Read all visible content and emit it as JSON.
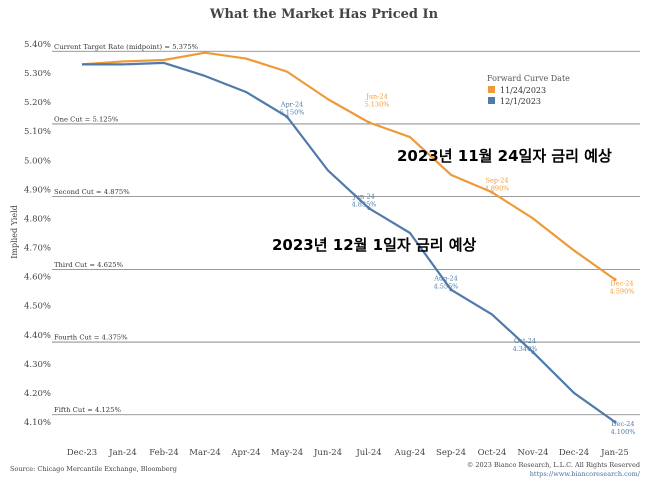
{
  "chart_data": {
    "type": "line",
    "title": "What the Market Has Priced In",
    "ylabel": "Implied Yield",
    "ylim": [
      4.05,
      5.42
    ],
    "yticks": [
      "5.40%",
      "5.30%",
      "5.20%",
      "5.10%",
      "5.00%",
      "4.90%",
      "4.80%",
      "4.70%",
      "4.60%",
      "4.50%",
      "4.40%",
      "4.30%",
      "4.20%",
      "4.10%"
    ],
    "ytick_values": [
      5.4,
      5.3,
      5.2,
      5.1,
      5.0,
      4.9,
      4.8,
      4.7,
      4.6,
      4.5,
      4.4,
      4.3,
      4.2,
      4.1
    ],
    "categories": [
      "Dec-23",
      "Jan-24",
      "Feb-24",
      "Mar-24",
      "Apr-24",
      "May-24",
      "Jun-24",
      "Jul-24",
      "Aug-24",
      "Sep-24",
      "Oct-24",
      "Nov-24",
      "Dec-24",
      "Jan-25"
    ],
    "legend_title": "Forward Curve Date",
    "legend_position": "top-right",
    "grid": false,
    "series": [
      {
        "name": "11/24/2023",
        "color": "#ef9a3a",
        "values": [
          5.33,
          5.34,
          5.345,
          5.37,
          5.35,
          5.305,
          5.21,
          5.13,
          5.08,
          4.95,
          4.89,
          4.8,
          4.69,
          4.59
        ]
      },
      {
        "name": "12/1/2023",
        "color": "#4f7baa",
        "values": [
          5.33,
          5.33,
          5.335,
          5.29,
          5.235,
          5.15,
          4.965,
          4.835,
          4.75,
          4.555,
          4.47,
          4.34,
          4.2,
          4.1
        ]
      }
    ],
    "reference_lines": [
      {
        "label": "Current Target Rate (midpoint) = 5.375%",
        "value": 5.375
      },
      {
        "label": "One Cut = 5.125%",
        "value": 5.125
      },
      {
        "label": "Second Cut = 4.875%",
        "value": 4.875
      },
      {
        "label": "Third Cut = 4.625%",
        "value": 4.625
      },
      {
        "label": "Fourth Cut = 4.375%",
        "value": 4.375
      },
      {
        "label": "Fifth Cut = 4.125%",
        "value": 4.125
      }
    ],
    "data_labels": [
      {
        "series": 0,
        "index": 7,
        "month": "Jun-24",
        "value_text": "5.130%"
      },
      {
        "series": 0,
        "index": 10,
        "month": "Sep-24",
        "value_text": "4.890%"
      },
      {
        "series": 0,
        "index": 13,
        "month": "Dec-24",
        "value_text": "4.590%"
      },
      {
        "series": 1,
        "index": 5,
        "month": "Apr-24",
        "value_text": "5.150%"
      },
      {
        "series": 1,
        "index": 7,
        "month": "Jun-24",
        "value_text": "4.835%"
      },
      {
        "series": 1,
        "index": 9,
        "month": "Aug-24",
        "value_text": "4.555%"
      },
      {
        "series": 1,
        "index": 11,
        "month": "Oct-24",
        "value_text": "4.340%"
      },
      {
        "series": 1,
        "index": 13,
        "month": "Dec-24",
        "value_text": "4.100%"
      }
    ],
    "annotations": [
      {
        "text": "2023년 11월 24일자 금리 예상"
      },
      {
        "text": "2023년 12월 1일자 금리 예상"
      }
    ]
  },
  "footer": {
    "source": "Source: Chicago Mercantile Exchange, Bloomberg",
    "copyright": "© 2023 Bianco Research, L.L.C. All Rights Reserved",
    "url": "https://www.biancoresearch.com/"
  }
}
